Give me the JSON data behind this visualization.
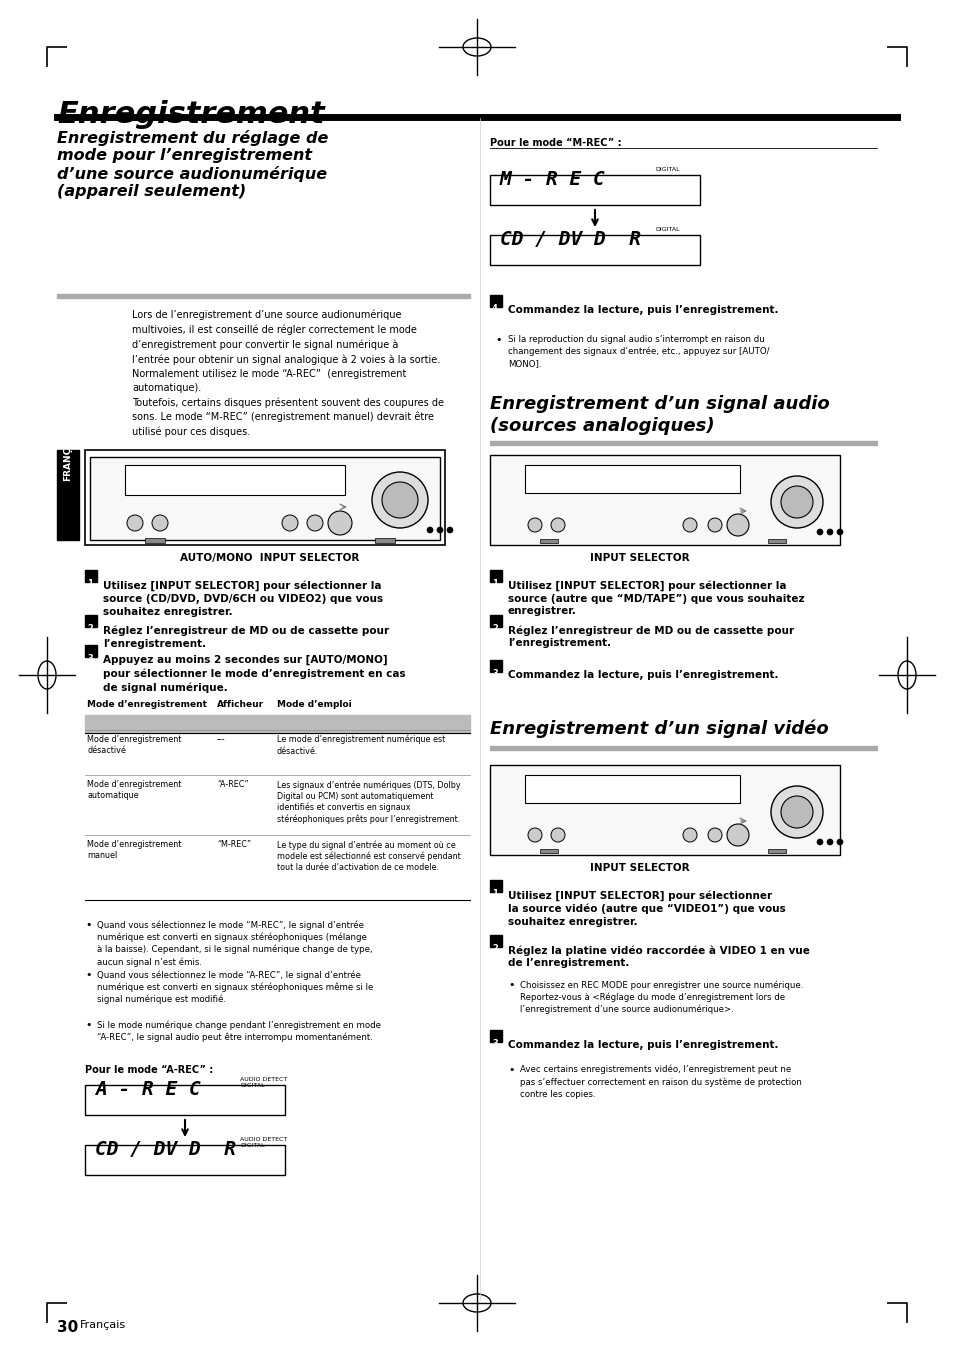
{
  "page_bg": "#ffffff",
  "page_width": 9.54,
  "page_height": 13.5,
  "title": "Enregistrement",
  "section1_title": "Enregistrement du réglage de\nmode pour l’enregistrement\nd’une source audionumérique\n(appareil seulement)",
  "section1_body": "Lors de l’enregistrement d’une source audionumérique\nmultivoies, il est conseillé de régler correctement le mode\nd’enregistrement pour convertir le signal numérique à\nl’entrée pour obtenir un signal analogique à 2 voies à la sortie.\nNormalement utilisez le mode “A-REC”  (enregistrement\nautomatique).\nToutefois, certains disques présentent souvent des coupures de\nsons. Le mode “M-REC” (enregistrement manuel) devrait être\nutilisé pour ces disques.",
  "step1_bold": "Utilisez [INPUT SELECTOR] pour sélectionner la\nsource (CD/DVD, DVD/6CH ou VIDEO2) que vous\nsouhaitez enregistrer.",
  "step2_bold": "Réglez l’enregistreur de MD ou de cassette pour\nl’enregistrement.",
  "step3_bold": "Appuyez au moins 2 secondes sur [AUTO/MONO]\npour sélectionner le mode d’enregistrement en cas\nde signal numérique.",
  "table_header": [
    "Mode d’enregistrement",
    "Afficheur",
    "Mode d’emploi"
  ],
  "table_rows": [
    [
      "Mode d’enregistrement\ndésactivé",
      "---",
      "Le mode d’enregistrement numérique est\ndésactivé."
    ],
    [
      "Mode d’enregistrement\nautomatique",
      "“A-REC”",
      "Les signaux d’entrée numériques (DTS, Dolby\nDigital ou PCM) sont automatiquement\nidentifiés et convertis en signaux\nstéréophoniques prêts pour l’enregistrement."
    ],
    [
      "Mode d’enregistrement\nmanuel",
      "“M-REC”",
      "Le type du signal d’entrée au moment où ce\nmodele est sélectionné est conservé pendant\ntout la durée d’activation de ce modele."
    ]
  ],
  "bullets_left": [
    "Quand vous sélectionnez le mode “M-REC”, le signal d’entrée\nnumérique est converti en signaux stéréophoniques (mélange\nà la baisse). Cependant, si le signal numérique change de type,\naucun signal n’est émis.",
    "Quand vous sélectionnez le mode “A-REC”, le signal d’entrée\nnumérique est converti en signaux stéréophoniques même si le\nsignal numérique est modifié.",
    "Si le mode numérique change pendant l’enregistrement en mode\n“A-REC”, le signal audio peut être interrompu momentanément."
  ],
  "pour_mode_a_rec": "Pour le mode “A-REC” :",
  "pour_mode_m_rec": "Pour le mode “M-REC” :",
  "right_bullet1": "Si la reproduction du signal audio s’interrompt en raison du\nchangement des signaux d’entrée, etc., appuyez sur [AUTO/\nMONO].",
  "section2_title": "Enregistrement d’un signal audio\n(sources analogiques)",
  "section2_step1": "Utilisez [INPUT SELECTOR] pour sélectionner la\nsource (autre que “MD/TAPE”) que vous souhaitez\nenregistrer.",
  "section2_step2": "Réglez l’enregistreur de MD ou de cassette pour\nl’enregistrement.",
  "section2_step3": "Commandez la lecture, puis l’enregistrement.",
  "section3_title": "Enregistrement d’un signal vidéo",
  "section3_step1": "Utilisez [INPUT SELECTOR] pour sélectionner\nla source vidéo (autre que “VIDEO1”) que vous\nsouhaitez enregistrer.",
  "section3_step2": "Réglez la platine vidéo raccordée à VIDEO 1 en vue\nde l’enregistrement.",
  "section3_step2_bullet": "Choisissez en REC MODE pour enregistrer une source numérique.\nReportez-vous à <Réglage du mode d’enregistrement lors de\nl’enregistrement d’une source audionumérique>.",
  "section3_step3": "Commandez la lecture, puis l’enregistrement.",
  "section3_step3_bullet": "Avec certains enregistrements vidéo, l’enregistrement peut ne\npas s’effectuer correctement en raison du système de protection\ncontre les copies.",
  "step4_right": "Commandez la lecture, puis l’enregistrement.",
  "page_num": "30",
  "page_num_text": "Français"
}
